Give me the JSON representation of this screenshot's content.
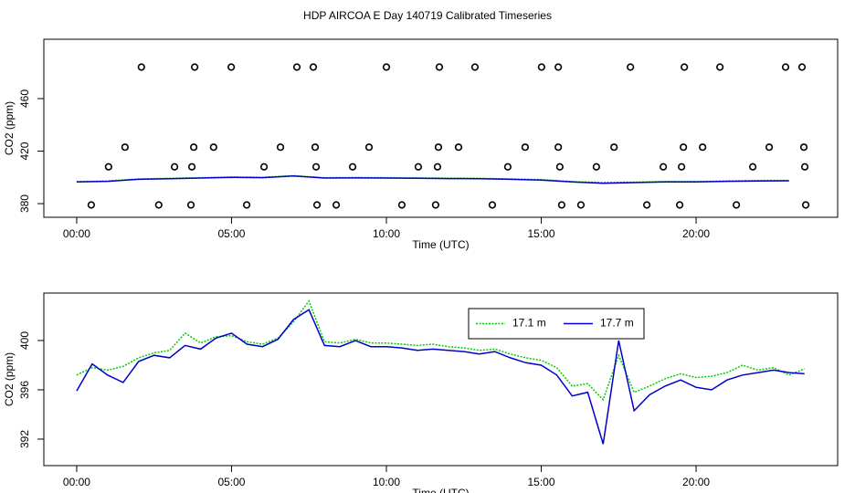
{
  "chart_data": [
    {
      "type": "line",
      "title": "HDP AIRCOA E  Day 140719  Calibrated Timeseries",
      "xlabel": "Time (UTC)",
      "ylabel": "CO2 (ppm)",
      "xlim": [
        -1.06,
        24.57
      ],
      "ylim": [
        369.6,
        505.2
      ],
      "xticks": [
        {
          "value": 0,
          "label": "00:00"
        },
        {
          "value": 5,
          "label": "05:00"
        },
        {
          "value": 10,
          "label": "10:00"
        },
        {
          "value": 15,
          "label": "15:00"
        },
        {
          "value": 20,
          "label": "20:00"
        }
      ],
      "yticks": [
        380,
        420,
        460
      ],
      "x": [
        0,
        1,
        2,
        3,
        4,
        5,
        6,
        7,
        8,
        9,
        10,
        11,
        12,
        13,
        14,
        15,
        16,
        17,
        18,
        19,
        20,
        21,
        22,
        23
      ],
      "series": [
        {
          "color": "#00cc00",
          "style": "dotted",
          "values": [
            396.8,
            397.3,
            398.8,
            399.3,
            399.8,
            400.3,
            400.1,
            401.3,
            399.8,
            399.9,
            399.8,
            399.6,
            399.4,
            399.3,
            398.8,
            398.3,
            396.8,
            396.0,
            396.4,
            396.8,
            396.8,
            397.3,
            397.6,
            397.7
          ]
        },
        {
          "color": "#0000cc",
          "style": "solid",
          "values": [
            396.5,
            397.0,
            398.5,
            399.0,
            399.5,
            400.0,
            399.8,
            401.0,
            399.5,
            399.6,
            399.5,
            399.3,
            399.1,
            399.0,
            398.5,
            398.0,
            396.5,
            395.5,
            396.0,
            396.5,
            396.5,
            397.0,
            397.3,
            397.4
          ]
        }
      ],
      "points": {
        "color": "#000000",
        "x": [
          2.09,
          3.81,
          4.99,
          7.11,
          7.64,
          10.0,
          11.71,
          12.86,
          15.01,
          15.55,
          17.88,
          19.62,
          20.77,
          22.89,
          23.42,
          1.56,
          3.78,
          4.42,
          6.58,
          7.7,
          9.44,
          11.68,
          12.33,
          14.48,
          15.55,
          17.35,
          19.59,
          20.21,
          22.36,
          23.48,
          1.03,
          3.16,
          3.72,
          6.05,
          7.73,
          8.91,
          11.03,
          11.65,
          13.92,
          15.6,
          16.78,
          18.94,
          19.53,
          21.83,
          23.51,
          0.47,
          2.65,
          3.69,
          5.49,
          7.76,
          8.38,
          10.5,
          11.59,
          13.42,
          15.66,
          16.28,
          18.41,
          19.47,
          21.3,
          23.54
        ],
        "values": [
          484,
          484,
          484,
          484,
          484,
          484,
          484,
          484,
          484,
          484,
          484,
          484,
          484,
          484,
          484,
          423,
          423,
          423,
          423,
          423,
          423,
          423,
          423,
          423,
          423,
          423,
          423,
          423,
          423,
          423,
          408,
          408,
          408,
          408,
          408,
          408,
          408,
          408,
          408,
          408,
          408,
          408,
          408,
          408,
          408,
          379,
          379,
          379,
          379,
          379,
          379,
          379,
          379,
          379,
          379,
          379,
          379,
          379,
          379,
          379
        ]
      }
    },
    {
      "type": "line",
      "xlabel": "Time (UTC)",
      "ylabel": "CO2 (ppm)",
      "xlim": [
        -1.06,
        24.57
      ],
      "ylim": [
        389.85,
        403.85
      ],
      "xticks": [
        {
          "value": 0,
          "label": "00:00"
        },
        {
          "value": 5,
          "label": "05:00"
        },
        {
          "value": 10,
          "label": "10:00"
        },
        {
          "value": 15,
          "label": "15:00"
        },
        {
          "value": 20,
          "label": "20:00"
        }
      ],
      "yticks": [
        392,
        396,
        400
      ],
      "legend": "top",
      "x": [
        0,
        0.5,
        1,
        1.5,
        2,
        2.5,
        3,
        3.5,
        4,
        4.5,
        5,
        5.5,
        6,
        6.5,
        7,
        7.5,
        8,
        8.5,
        9,
        9.5,
        10,
        10.5,
        11,
        11.5,
        12,
        12.5,
        13,
        13.5,
        14,
        14.5,
        15,
        15.5,
        16,
        16.5,
        17,
        17.5,
        18,
        18.5,
        19,
        19.5,
        20,
        20.5,
        21,
        21.5,
        22,
        22.5,
        23,
        23.5
      ],
      "series": [
        {
          "name": "17.1 m",
          "color": "#00cc00",
          "style": "dotted",
          "values": [
            397.2,
            397.8,
            397.6,
            397.9,
            398.6,
            399.0,
            399.2,
            400.6,
            399.8,
            400.3,
            400.4,
            399.9,
            399.7,
            400.2,
            401.5,
            403.2,
            399.9,
            399.8,
            400.1,
            399.8,
            399.8,
            399.7,
            399.6,
            399.7,
            399.5,
            399.4,
            399.2,
            399.3,
            398.9,
            398.6,
            398.4,
            397.8,
            396.3,
            396.5,
            395.2,
            398.8,
            395.8,
            396.3,
            396.9,
            397.3,
            397.0,
            397.1,
            397.4,
            398.0,
            397.6,
            397.8,
            397.2,
            397.7
          ]
        },
        {
          "name": "17.7 m",
          "color": "#0000cc",
          "style": "solid",
          "values": [
            395.9,
            398.1,
            397.2,
            396.6,
            398.3,
            398.8,
            398.6,
            399.6,
            399.3,
            400.2,
            400.6,
            399.7,
            399.5,
            400.1,
            401.7,
            402.5,
            399.6,
            399.5,
            400.0,
            399.5,
            399.5,
            399.4,
            399.2,
            399.3,
            399.2,
            399.1,
            398.9,
            399.1,
            398.6,
            398.2,
            398.0,
            397.2,
            395.5,
            395.8,
            391.6,
            400.0,
            394.3,
            395.6,
            396.3,
            396.8,
            396.2,
            396.0,
            396.8,
            397.2,
            397.4,
            397.6,
            397.4,
            397.3
          ]
        }
      ]
    }
  ]
}
